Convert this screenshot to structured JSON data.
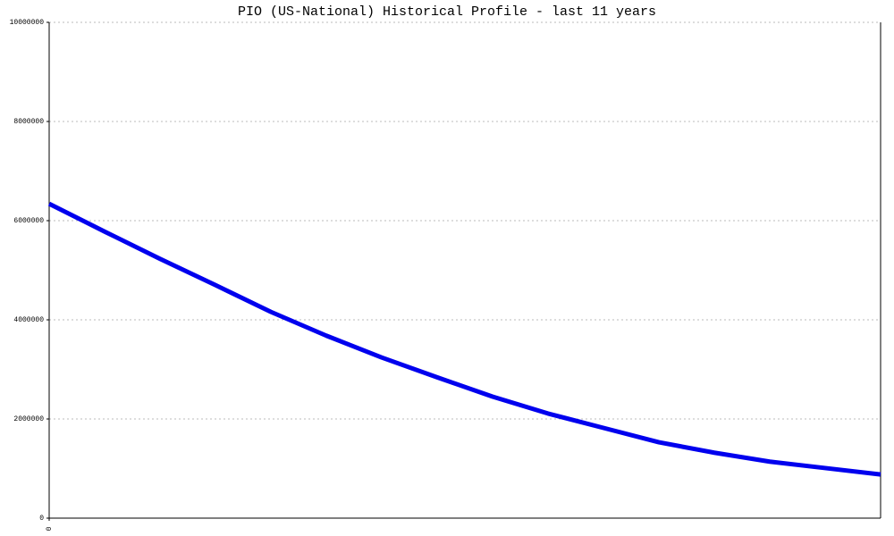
{
  "chart_data": {
    "type": "line",
    "title": "PIO (US-National) Historical Profile - last 11 years",
    "categories": [
      "0",
      null,
      null,
      null,
      null,
      null,
      null,
      null,
      null,
      null,
      null,
      null,
      null,
      null,
      null,
      null
    ],
    "series": [
      {
        "name": "PIO",
        "color": "#0000ee",
        "values": [
          6340000,
          5780000,
          5230000,
          4700000,
          4160000,
          3680000,
          3240000,
          2840000,
          2450000,
          2110000,
          1820000,
          1530000,
          1320000,
          1140000,
          1010000,
          880000
        ]
      }
    ],
    "ylim": [
      0,
      10000000
    ],
    "yticks": [
      0,
      2000000,
      4000000,
      6000000,
      8000000,
      10000000
    ],
    "grid": true
  }
}
